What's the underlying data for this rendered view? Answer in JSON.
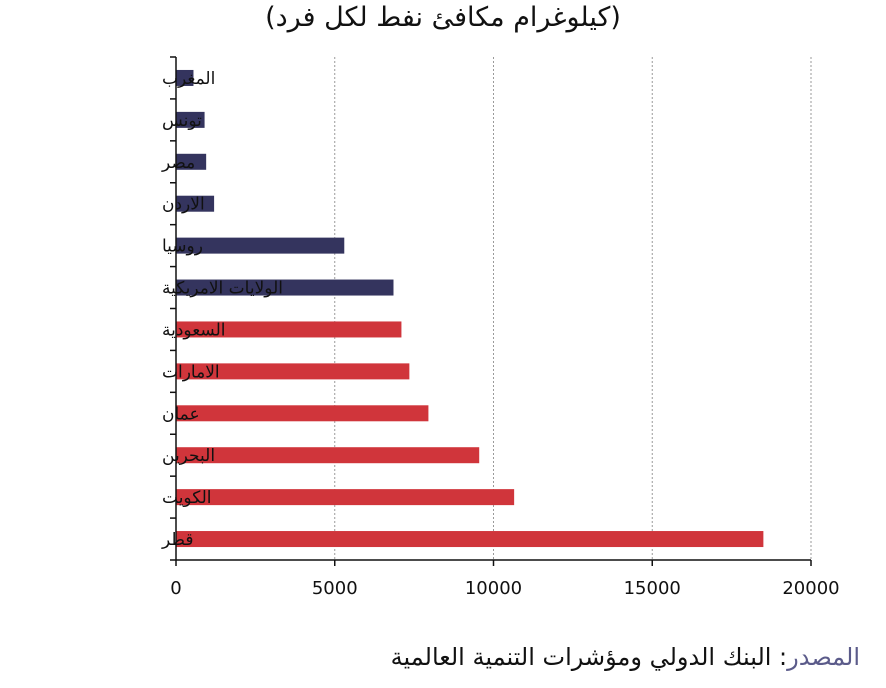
{
  "title": "(كيلوغرام مكافئ نفط لكل فرد)",
  "source": {
    "label": "المصدر",
    "text": ": البنك الدولي ومؤشرات التنمية العالمية"
  },
  "colors": {
    "navy": "#34345e",
    "red": "#d0353b"
  },
  "chart_data": {
    "type": "bar",
    "orientation": "horizontal",
    "title": "(كيلوغرام مكافئ نفط لكل فرد)",
    "xlabel": "",
    "ylabel": "",
    "xlim": [
      0,
      20000
    ],
    "xticks": [
      0,
      5000,
      10000,
      15000,
      20000
    ],
    "grid": "vertical-dotted",
    "categories": [
      "المغرب",
      "تونس",
      "مصر",
      "الاردن",
      "روسيا",
      "الولايات الامريكية",
      "السعودية",
      "الامارات",
      "عمان",
      "البحرين",
      "الكويت",
      "قطر"
    ],
    "values": [
      550,
      900,
      950,
      1200,
      5300,
      6850,
      7100,
      7350,
      7950,
      9550,
      10650,
      18500
    ],
    "bar_colors": [
      "#34345e",
      "#34345e",
      "#34345e",
      "#34345e",
      "#34345e",
      "#34345e",
      "#d0353b",
      "#d0353b",
      "#d0353b",
      "#d0353b",
      "#d0353b",
      "#d0353b"
    ]
  }
}
